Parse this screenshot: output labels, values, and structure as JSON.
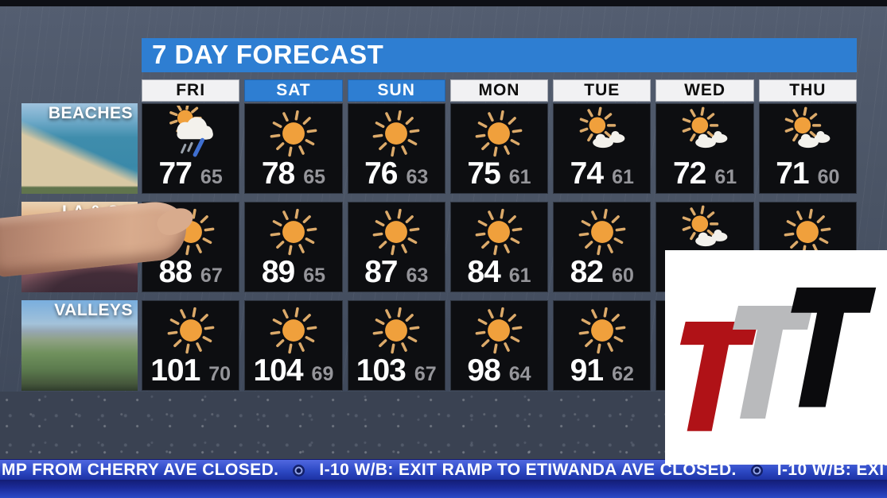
{
  "forecast": {
    "title": "7 DAY FORECAST",
    "days": [
      {
        "label": "FRI",
        "weekend": false
      },
      {
        "label": "SAT",
        "weekend": true
      },
      {
        "label": "SUN",
        "weekend": true
      },
      {
        "label": "MON",
        "weekend": false
      },
      {
        "label": "TUE",
        "weekend": false
      },
      {
        "label": "WED",
        "weekend": false
      },
      {
        "label": "THU",
        "weekend": false
      }
    ],
    "regions": [
      {
        "name": "BEACHES",
        "label_lines": [
          "BEACHES"
        ],
        "style": "beaches",
        "cells": [
          {
            "icon": "sun-cloud-rain",
            "high": "77",
            "low": "65"
          },
          {
            "icon": "sunny",
            "high": "78",
            "low": "65"
          },
          {
            "icon": "sunny",
            "high": "76",
            "low": "63"
          },
          {
            "icon": "sunny",
            "high": "75",
            "low": "61"
          },
          {
            "icon": "partly-cloudy",
            "high": "74",
            "low": "61"
          },
          {
            "icon": "partly-cloudy",
            "high": "72",
            "low": "61"
          },
          {
            "icon": "partly-cloudy",
            "high": "71",
            "low": "60"
          }
        ]
      },
      {
        "name": "LA & OC METRO",
        "label_lines": [
          "LA & OC",
          "METRO"
        ],
        "style": "metro",
        "cells": [
          {
            "icon": "sunny",
            "high": "88",
            "low": "67"
          },
          {
            "icon": "sunny",
            "high": "89",
            "low": "65"
          },
          {
            "icon": "sunny",
            "high": "87",
            "low": "63"
          },
          {
            "icon": "sunny",
            "high": "84",
            "low": "61"
          },
          {
            "icon": "sunny",
            "high": "82",
            "low": "60"
          },
          {
            "icon": "partly-cloudy",
            "high": null,
            "low": null
          },
          {
            "icon": "sunny",
            "high": null,
            "low": null
          }
        ]
      },
      {
        "name": "VALLEYS",
        "label_lines": [
          "VALLEYS"
        ],
        "style": "valleys",
        "cells": [
          {
            "icon": "sunny",
            "high": "101",
            "low": "70"
          },
          {
            "icon": "sunny",
            "high": "104",
            "low": "69"
          },
          {
            "icon": "sunny",
            "high": "103",
            "low": "67"
          },
          {
            "icon": "sunny",
            "high": "98",
            "low": "64"
          },
          {
            "icon": "sunny",
            "high": "91",
            "low": "62"
          },
          {
            "icon": null,
            "high": null,
            "low": null
          },
          {
            "icon": null,
            "high": null,
            "low": null
          }
        ]
      }
    ]
  },
  "ticker": {
    "segments": [
      "MP FROM CHERRY AVE CLOSED.",
      "I-10 W/B: EXIT RAMP TO ETIWANDA AVE CLOSED.",
      "I-10 W/B: EXIT"
    ]
  },
  "logo": {
    "background": "#ffffff",
    "t_red": "#b01217",
    "t_gray": "#b9babc",
    "t_black": "#0b0b0d"
  },
  "colors": {
    "accent_blue": "#2e7ed2",
    "cell_bg": "#0d0e11",
    "high_temp": "#ffffff",
    "low_temp": "#95959a",
    "sun": "#f0a03c",
    "sun_ray": "#dcaa6a",
    "cloud": "#f3f1ec",
    "rain_blue": "#3f6fd0",
    "rain_gray": "#9aa2ac",
    "ticker_strip": "#2d49c4",
    "bottom_band": "#3a4252"
  }
}
